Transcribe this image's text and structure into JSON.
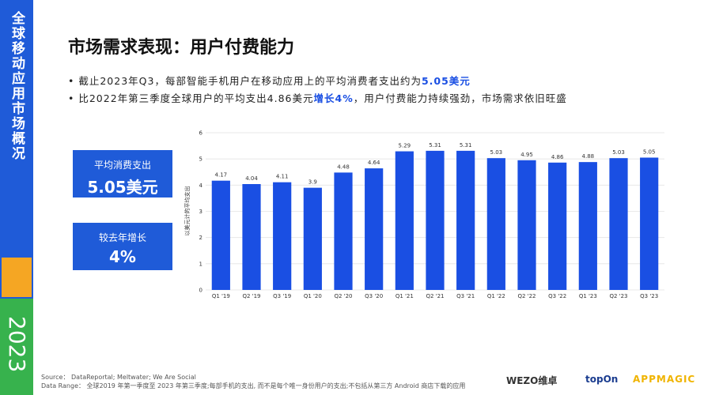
{
  "sidebar": {
    "title": "全球移动应用市场概况",
    "year": "2023"
  },
  "heading": "市场需求表现：用户付费能力",
  "bullets": [
    [
      "截止2023年Q3，每部智能手机用户在移动应用上的平均消费者支出约为",
      "5.05美元",
      ""
    ],
    [
      "比2022年第三季度全球用户的平均支出4.86美元",
      "增长4%",
      "，用户付费能力持续强劲，市场需求依旧旺盛"
    ]
  ],
  "cards": [
    {
      "label": "平均消费支出",
      "value": "5.05美元"
    },
    {
      "label": "较去年增长",
      "value": "4%"
    }
  ],
  "chart_data": {
    "type": "bar",
    "y_label": "以美元计的平均支出",
    "categories": [
      "Q1 '19",
      "Q2 '19",
      "Q3 '19",
      "Q1 '20",
      "Q2 '20",
      "Q3 '20",
      "Q1 '21",
      "Q2 '21",
      "Q3 '21",
      "Q1 '22",
      "Q2 '22",
      "Q3 '22",
      "Q1 '23",
      "Q2 '23",
      "Q3 '23"
    ],
    "values": [
      4.17,
      4.04,
      4.11,
      3.9,
      4.48,
      4.64,
      5.29,
      5.31,
      5.31,
      5.03,
      4.95,
      4.86,
      4.88,
      5.03,
      5.05
    ],
    "color": "#1a4fe3",
    "ylim": [
      0,
      6
    ],
    "yticks": [
      0,
      1,
      2,
      3,
      4,
      5,
      6
    ],
    "grid": true
  },
  "footer": {
    "source": "Source： DataReportal; Meltwater; We Are Social",
    "range": "Data Range： 全球2019 年第一季度至 2023 年第三季度;每部手机的支出, 而不是每个唯一身份用户的支出;不包括从第三方 Android 商店下载的应用"
  },
  "logos": [
    "WEZO维卓",
    "topOn",
    "APPMAGIC"
  ]
}
